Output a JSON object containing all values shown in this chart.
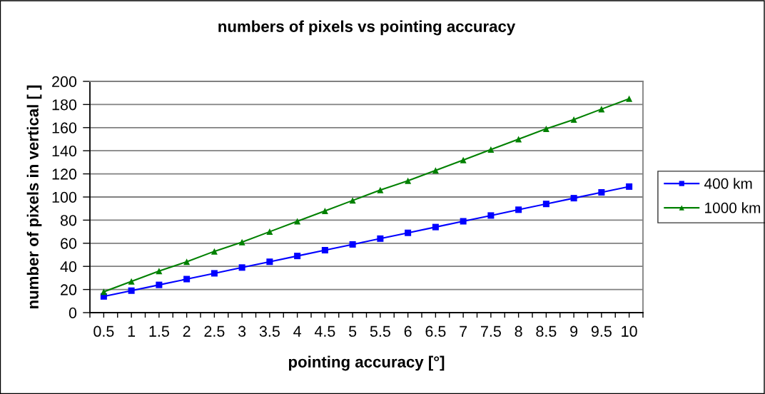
{
  "chart_data": {
    "type": "line",
    "title": "numbers of pixels vs pointing accuracy",
    "xlabel": "pointing accuracy [°]",
    "ylabel": "number of pixels in vertical [ ]",
    "categories": [
      "0.5",
      "1",
      "1.5",
      "2",
      "2.5",
      "3",
      "3.5",
      "4",
      "4.5",
      "5",
      "5.5",
      "6",
      "6.5",
      "7",
      "7.5",
      "8",
      "8.5",
      "9",
      "9.5",
      "10"
    ],
    "series": [
      {
        "name": "400 km",
        "color": "#0000ff",
        "marker": "square",
        "values": [
          14,
          19,
          24,
          29,
          34,
          39,
          44,
          49,
          54,
          59,
          64,
          69,
          74,
          79,
          84,
          89,
          94,
          99,
          104,
          109
        ]
      },
      {
        "name": "1000 km",
        "color": "#008000",
        "marker": "triangle",
        "values": [
          18,
          27,
          36,
          44,
          53,
          61,
          70,
          79,
          88,
          97,
          106,
          114,
          123,
          132,
          141,
          150,
          159,
          167,
          176,
          185
        ]
      }
    ],
    "ylim": [
      0,
      200
    ],
    "yticks": [
      0,
      20,
      40,
      60,
      80,
      100,
      120,
      140,
      160,
      180,
      200
    ],
    "grid": "y",
    "legend": "right",
    "line_style": "solid"
  }
}
